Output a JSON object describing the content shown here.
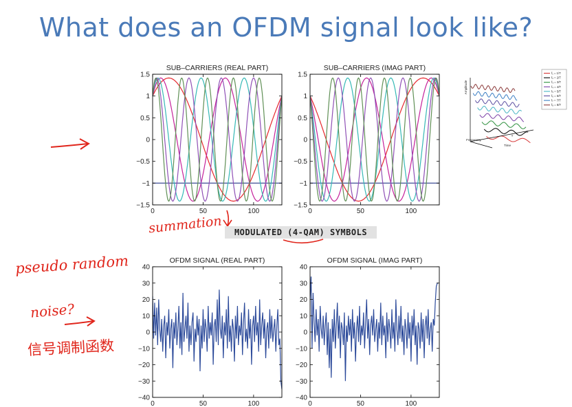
{
  "slide": {
    "title": "What does an OFDM signal look like?"
  },
  "banner": {
    "text": "MODULATED (4-QAM) SYMBOLS"
  },
  "annotations": {
    "summation": "summation",
    "pseudo": "pseudo random",
    "noise": "noise?",
    "chinese": "信号调制函数"
  },
  "colors": {
    "subcarriers": [
      "#e6262c",
      "#c4209a",
      "#33b8b5",
      "#8e4fb5",
      "#5f8f55",
      "#283a8a"
    ],
    "signal": "#2c4a9a",
    "handwriting": "#e0251b",
    "title": "#4a7ab8"
  },
  "thumbnail_legend": [
    "f₁ = 1/T",
    "f₂ = 2/T",
    "f₃ = 3/T",
    "f₄ = 4/T",
    "f₅ = 5/T",
    "f₆ = 6/T",
    "f₇ = 7/T",
    "f₈ = 8/T"
  ],
  "thumbnail_labels": {
    "y": "Amplitude",
    "x": "Time",
    "z": "Frequency",
    "t": "T"
  },
  "chart_data": [
    {
      "type": "line",
      "title": "SUB–CARRIERS (REAL PART)",
      "xlim": [
        0,
        128
      ],
      "ylim": [
        -1.5,
        1.5
      ],
      "xticks": [
        0,
        50,
        100
      ],
      "yticks": [
        1.5,
        1,
        0.5,
        0,
        -0.5,
        -1,
        -1.5
      ],
      "xtick_labels": [
        "0",
        "50",
        "100"
      ],
      "ytick_labels": [
        "1.5",
        "1",
        "0.5",
        "0",
        "−0.5",
        "−1",
        "−1.5"
      ],
      "series": [
        {
          "kind": "cos",
          "k": 0,
          "amp": 1,
          "offset": -1
        },
        {
          "kind": "cos",
          "k": 1,
          "amp": 1.414,
          "phase": -0.785
        },
        {
          "kind": "cos",
          "k": 2,
          "amp": 1.414,
          "phase": -0.785
        },
        {
          "kind": "cos",
          "k": 3,
          "amp": 1.414,
          "phase": -0.785
        },
        {
          "kind": "cos",
          "k": 4,
          "amp": 1.414,
          "phase": -0.785
        },
        {
          "kind": "cos",
          "k": 5,
          "amp": 1.414,
          "phase": -0.785
        }
      ]
    },
    {
      "type": "line",
      "title": "SUB–CARRIERS (IMAG PART)",
      "xlim": [
        0,
        128
      ],
      "ylim": [
        -1.5,
        1.5
      ],
      "xticks": [
        0,
        50,
        100
      ],
      "yticks": [
        1.5,
        1,
        0.5,
        0,
        -0.5,
        -1,
        -1.5
      ],
      "xtick_labels": [
        "0",
        "50",
        "100"
      ],
      "ytick_labels": [
        "1.5",
        "1",
        "0.5",
        "0",
        "−0.5",
        "−1",
        "−1.5"
      ],
      "series": [
        {
          "kind": "cos",
          "k": 0,
          "amp": 1,
          "offset": -1
        },
        {
          "kind": "cos",
          "k": 1,
          "amp": 1.414,
          "phase": 0.785
        },
        {
          "kind": "cos",
          "k": 2,
          "amp": 1.414,
          "phase": 0.785
        },
        {
          "kind": "cos",
          "k": 3,
          "amp": 1.414,
          "phase": 0.785
        },
        {
          "kind": "cos",
          "k": 4,
          "amp": 1.414,
          "phase": 0.785
        },
        {
          "kind": "cos",
          "k": 5,
          "amp": 1.414,
          "phase": 0.785
        }
      ]
    },
    {
      "type": "line",
      "title": "OFDM SIGNAL (REAL PART)",
      "xlim": [
        0,
        128
      ],
      "ylim": [
        -40,
        40
      ],
      "xticks": [
        0,
        50,
        100
      ],
      "yticks": [
        40,
        30,
        20,
        10,
        0,
        -10,
        -20,
        -30,
        -40
      ],
      "xtick_labels": [
        "0",
        "50",
        "100"
      ],
      "ytick_labels": [
        "40",
        "30",
        "20",
        "10",
        "0",
        "−10",
        "−20",
        "−30",
        "−40"
      ],
      "series": [
        {
          "kind": "points",
          "y": [
            22,
            -4,
            18,
            -2,
            15,
            -8,
            20,
            2,
            -6,
            8,
            -12,
            4,
            10,
            -16,
            6,
            -2,
            14,
            -10,
            2,
            8,
            -22,
            6,
            -4,
            12,
            -8,
            2,
            16,
            -10,
            6,
            -14,
            24,
            -6,
            2,
            10,
            -4,
            18,
            -12,
            4,
            -8,
            6,
            12,
            -18,
            2,
            -6,
            10,
            -2,
            8,
            -24,
            4,
            -10,
            14,
            -6,
            8,
            2,
            -12,
            16,
            -4,
            6,
            -2,
            12,
            -20,
            4,
            8,
            -6,
            20,
            -8,
            26,
            2,
            -4,
            10,
            -16,
            6,
            -2,
            14,
            -10,
            22,
            -6,
            4,
            -12,
            8,
            2,
            -18,
            10,
            -4,
            16,
            -8,
            4,
            -2,
            12,
            -14,
            6,
            18,
            -6,
            2,
            -10,
            14,
            -4,
            8,
            -20,
            4,
            10,
            -6,
            16,
            -2,
            6,
            -12,
            20,
            -8,
            4,
            12,
            -4,
            8,
            -16,
            2,
            6,
            -10,
            14,
            -4,
            10,
            -6,
            2,
            8,
            -12,
            4,
            14,
            -8,
            -4,
            -30,
            -35
          ]
        }
      ]
    },
    {
      "type": "line",
      "title": "OFDM SIGNAL (IMAG PART)",
      "xlim": [
        0,
        128
      ],
      "ylim": [
        -40,
        40
      ],
      "xticks": [
        0,
        50,
        100
      ],
      "yticks": [
        40,
        30,
        20,
        10,
        0,
        -10,
        -20,
        -30,
        -40
      ],
      "xtick_labels": [
        "0",
        "50",
        "100"
      ],
      "ytick_labels": [
        "40",
        "30",
        "20",
        "10",
        "0",
        "−10",
        "−20",
        "−30",
        "−40"
      ],
      "series": [
        {
          "kind": "points",
          "y": [
            20,
            34,
            -10,
            24,
            6,
            -6,
            14,
            -2,
            8,
            -12,
            16,
            2,
            -4,
            10,
            -8,
            4,
            12,
            -14,
            6,
            -22,
            2,
            -28,
            8,
            -6,
            14,
            -10,
            4,
            18,
            -4,
            10,
            -16,
            6,
            2,
            -8,
            12,
            -30,
            4,
            -6,
            10,
            -2,
            8,
            -12,
            14,
            -4,
            6,
            -18,
            2,
            10,
            -6,
            16,
            -8,
            4,
            -2,
            12,
            -10,
            6,
            20,
            -4,
            8,
            -14,
            4,
            10,
            -2,
            14,
            -6,
            2,
            8,
            -12,
            6,
            -4,
            18,
            -8,
            10,
            -2,
            4,
            -16,
            12,
            -6,
            8,
            2,
            -10,
            14,
            -4,
            6,
            -12,
            20,
            2,
            -8,
            10,
            -4,
            16,
            -6,
            4,
            -14,
            8,
            2,
            -10,
            12,
            -4,
            6,
            -18,
            10,
            -2,
            14,
            -8,
            4,
            -20,
            6,
            2,
            -10,
            12,
            -6,
            8,
            -16,
            4,
            10,
            -4,
            14,
            -8,
            2,
            6,
            -12,
            8,
            4,
            18,
            28,
            30,
            30
          ]
        }
      ]
    }
  ]
}
